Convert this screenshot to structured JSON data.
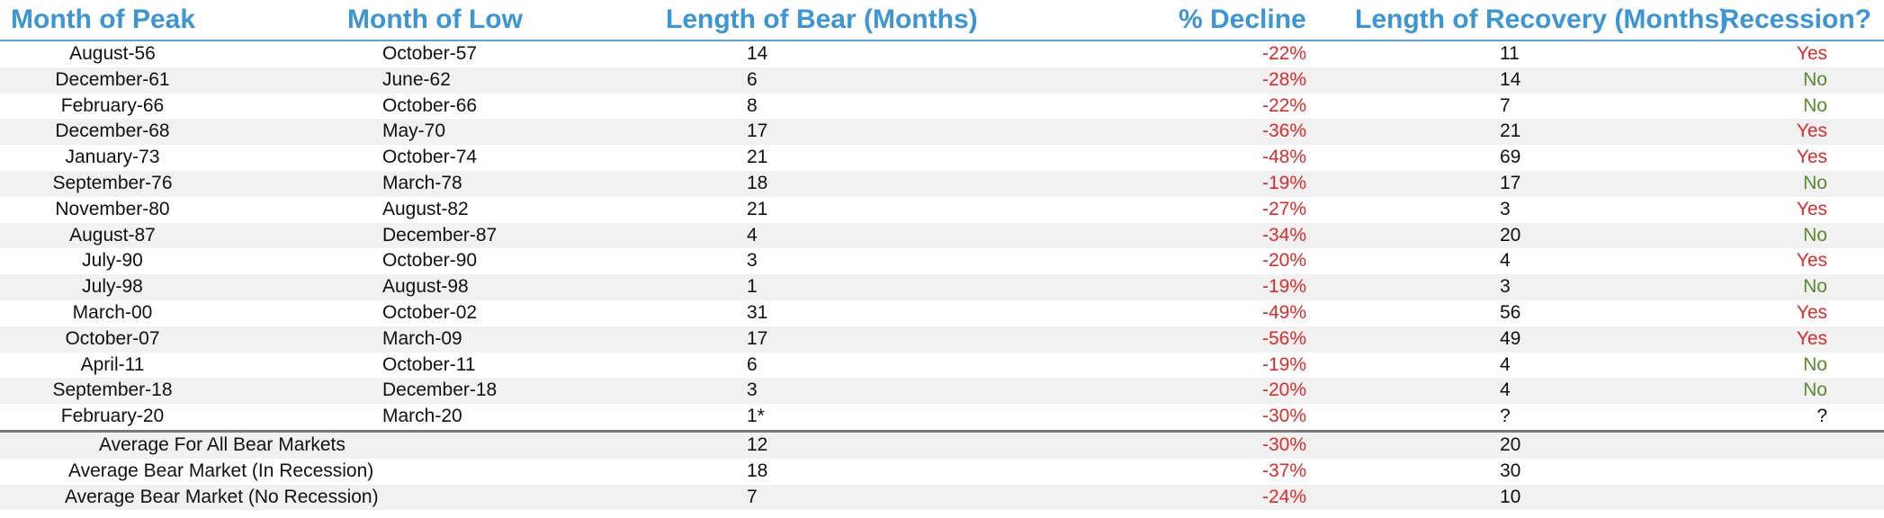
{
  "headers": {
    "peak": "Month of Peak",
    "low": "Month of Low",
    "length": "Length of Bear (Months)",
    "decline": "% Decline",
    "recovery": "Length of Recovery (Months)",
    "recession": "Recession?"
  },
  "rows": [
    {
      "peak": "August-56",
      "low": "October-57",
      "length": "14",
      "decline": "-22%",
      "recovery": "11",
      "recession": "Yes"
    },
    {
      "peak": "December-61",
      "low": "June-62",
      "length": "6",
      "decline": "-28%",
      "recovery": "14",
      "recession": "No"
    },
    {
      "peak": "February-66",
      "low": "October-66",
      "length": "8",
      "decline": "-22%",
      "recovery": "7",
      "recession": "No"
    },
    {
      "peak": "December-68",
      "low": "May-70",
      "length": "17",
      "decline": "-36%",
      "recovery": "21",
      "recession": "Yes"
    },
    {
      "peak": "January-73",
      "low": "October-74",
      "length": "21",
      "decline": "-48%",
      "recovery": "69",
      "recession": "Yes"
    },
    {
      "peak": "September-76",
      "low": "March-78",
      "length": "18",
      "decline": "-19%",
      "recovery": "17",
      "recession": "No"
    },
    {
      "peak": "November-80",
      "low": "August-82",
      "length": "21",
      "decline": "-27%",
      "recovery": "3",
      "recession": "Yes"
    },
    {
      "peak": "August-87",
      "low": "December-87",
      "length": "4",
      "decline": "-34%",
      "recovery": "20",
      "recession": "No"
    },
    {
      "peak": "July-90",
      "low": "October-90",
      "length": "3",
      "decline": "-20%",
      "recovery": "4",
      "recession": "Yes"
    },
    {
      "peak": "July-98",
      "low": "August-98",
      "length": "1",
      "decline": "-19%",
      "recovery": "3",
      "recession": "No"
    },
    {
      "peak": "March-00",
      "low": "October-02",
      "length": "31",
      "decline": "-49%",
      "recovery": "56",
      "recession": "Yes"
    },
    {
      "peak": "October-07",
      "low": "March-09",
      "length": "17",
      "decline": "-56%",
      "recovery": "49",
      "recession": "Yes"
    },
    {
      "peak": "April-11",
      "low": "October-11",
      "length": "6",
      "decline": "-19%",
      "recovery": "4",
      "recession": "No"
    },
    {
      "peak": "September-18",
      "low": "December-18",
      "length": "3",
      "decline": "-20%",
      "recovery": "4",
      "recession": "No"
    },
    {
      "peak": "February-20",
      "low": "March-20",
      "length": "1*",
      "decline": "-30%",
      "recovery": "?",
      "recession": "?"
    }
  ],
  "averages": [
    {
      "label": "Average For All Bear Markets",
      "length": "12",
      "decline": "-30%",
      "recovery": "20"
    },
    {
      "label": "Average Bear Market (In Recession)",
      "length": "18",
      "decline": "-37%",
      "recovery": "30"
    },
    {
      "label": "Average Bear Market (No Recession)",
      "length": "7",
      "decline": "-24%",
      "recovery": "10"
    }
  ],
  "colors": {
    "header": "#3c96d3",
    "negative": "#e02a2a",
    "yes": "#e02a2a",
    "no": "#5a8a2e",
    "stripe": "#f1f1f1"
  }
}
